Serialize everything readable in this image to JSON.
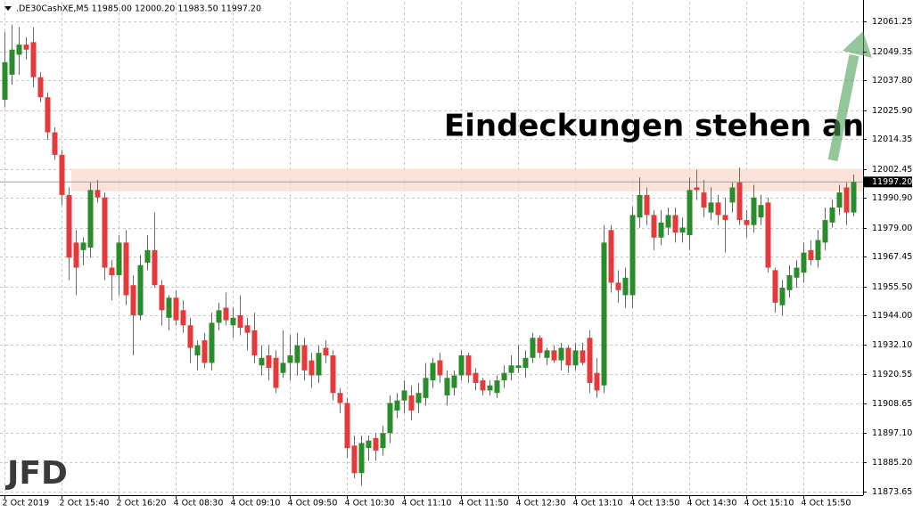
{
  "header": ".DE30CashXE,M5  11985.00 12000.20 11983.50 11997.20",
  "logo": "JFD",
  "chart_data": {
    "type": "candlestick",
    "annotation": "Eindeckungen stehen an",
    "annotation_color": "#3c9a3c",
    "up_color": "#2a8c2a",
    "down_color": "#e43a3a",
    "zone_color": "#fbdcd0",
    "resistance_zone": [
      11993.5,
      12002.4
    ],
    "current_price": {
      "value": 11997.2,
      "label": "11997.20"
    },
    "grid": true,
    "ylim": [
      11872.2,
      12069.1
    ],
    "yticks": [
      11873.65,
      {
        "value": 11885.2,
        "label": "11885.20"
      },
      {
        "value": 11897.1,
        "label": "11897.10"
      },
      11908.65,
      11920.55,
      {
        "value": 11932.1,
        "label": "11932.10"
      },
      {
        "value": 11944,
        "label": "11944.00"
      },
      {
        "value": 11955.5,
        "label": "11955.50"
      },
      11967.45,
      {
        "value": 11979,
        "label": "11979.00"
      },
      {
        "value": 11990.9,
        "label": "11990.90"
      },
      12002.45,
      12014.35,
      {
        "value": 12025.9,
        "label": "12025.90"
      },
      {
        "value": 12037.8,
        "label": "12037.80"
      },
      12049.35,
      12061.25
    ],
    "categories": [
      "2 Oct 2019",
      null,
      null,
      null,
      null,
      null,
      null,
      null,
      "2 Oct 15:40",
      null,
      null,
      null,
      null,
      null,
      null,
      null,
      "2 Oct 16:20",
      null,
      null,
      null,
      null,
      null,
      null,
      null,
      "4 Oct 08:30",
      null,
      null,
      null,
      null,
      null,
      null,
      null,
      "4 Oct 09:10",
      null,
      null,
      null,
      null,
      null,
      null,
      null,
      "4 Oct 09:50",
      null,
      null,
      null,
      null,
      null,
      null,
      null,
      "4 Oct 10:30",
      null,
      null,
      null,
      null,
      null,
      null,
      null,
      "4 Oct 11:10",
      null,
      null,
      null,
      null,
      null,
      null,
      null,
      "4 Oct 11:50",
      null,
      null,
      null,
      null,
      null,
      null,
      null,
      "4 Oct 12:30",
      null,
      null,
      null,
      null,
      null,
      null,
      null,
      "4 Oct 13:10",
      null,
      null,
      null,
      null,
      null,
      null,
      null,
      "4 Oct 13:50",
      null,
      null,
      null,
      null,
      null,
      null,
      null,
      "4 Oct 14:30",
      null,
      null,
      null,
      null,
      null,
      null,
      null,
      "4 Oct 15:10",
      null,
      null,
      null,
      null,
      null,
      null,
      null,
      "4 Oct 15:50",
      null,
      null,
      null,
      null,
      null,
      null,
      null
    ],
    "open": [
      12030,
      12040,
      12048,
      12052,
      12053,
      12039,
      12031,
      12017,
      12008,
      11992,
      11973,
      11970,
      11971,
      11994,
      11991,
      11963,
      11960,
      11973,
      11956,
      11944,
      11965,
      11970,
      11956,
      11943,
      11951,
      11946,
      11940,
      11928,
      11934,
      11925,
      11941,
      11947,
      11940,
      11944,
      11940,
      11938,
      11924,
      11928,
      11927,
      11921,
      11925,
      11925,
      11932,
      11926,
      11920,
      11931,
      11928,
      11913,
      11909,
      11892,
      11881,
      11891,
      11895,
      11891,
      11897,
      11906,
      11910,
      11912,
      11909,
      11911,
      11918,
      11926,
      11912,
      11915,
      11920,
      11928,
      11921,
      11918,
      11914,
      11913,
      11918,
      11921,
      11923,
      11923,
      11927,
      11935,
      11927,
      11930,
      11926,
      11931,
      11924,
      11930,
      11935,
      11921,
      11916,
      11978,
      11957,
      11952,
      11952,
      11983,
      11992,
      11984,
      11975,
      11979,
      11984,
      11977,
      11976,
      11995,
      11993,
      11985,
      11989,
      11984,
      11989,
      11997,
      11982,
      11980,
      11983,
      11989,
      11962,
      11948,
      11954,
      11959,
      11961,
      11970,
      11966,
      11973,
      11981,
      11987,
      11995,
      11985
    ],
    "high": [
      12057,
      12060,
      12059,
      12055,
      12059,
      12041,
      12033,
      12019,
      12010,
      11995,
      11978,
      11975,
      11997,
      11998,
      11993,
      11966,
      11976,
      11978,
      11960,
      11968,
      11976,
      11985,
      11958,
      11952,
      11954,
      11950,
      11943,
      11934,
      11937,
      11945,
      11949,
      11953,
      11947,
      11952,
      11943,
      11945,
      11932,
      11932,
      11930,
      11938,
      11936,
      11937,
      11935,
      11929,
      11932,
      11934,
      11930,
      11915,
      11911,
      11896,
      11896,
      11896,
      11897,
      11900,
      11912,
      11913,
      11918,
      11916,
      11917,
      11925,
      11927,
      11929,
      11922,
      11922,
      11930,
      11929,
      11923,
      11919,
      11918,
      11920,
      11924,
      11928,
      11932,
      11930,
      11937,
      11936,
      11931,
      11932,
      11933,
      11932,
      11933,
      11933,
      11938,
      11927,
      11980,
      11980,
      11962,
      11963,
      11987,
      11999,
      11995,
      11986,
      11986,
      11987,
      11987,
      11983,
      11999,
      12002,
      11998,
      11995,
      11992,
      11991,
      11997,
      12003,
      11986,
      11996,
      11992,
      11991,
      11963,
      11958,
      11964,
      11966,
      11973,
      11974,
      11978,
      11987,
      11990,
      11996,
      11997,
      12000.2
    ],
    "low": [
      12027,
      12036,
      12040,
      12046,
      12035,
      12029,
      12014,
      12006,
      11988,
      11958,
      11952,
      11964,
      11967,
      11989,
      11958,
      11950,
      11952,
      11948,
      11928,
      11942,
      11962,
      11955,
      11940,
      11938,
      11940,
      11937,
      11925,
      11922,
      11923,
      11922,
      11938,
      11940,
      11935,
      11936,
      11930,
      11925,
      11920,
      11918,
      11913,
      11919,
      11918,
      11920,
      11918,
      11915,
      11917,
      11925,
      11910,
      11905,
      11887,
      11879,
      11876,
      11886,
      11886,
      11888,
      11893,
      11903,
      11905,
      11902,
      11905,
      11908,
      11915,
      11917,
      11908,
      11912,
      11918,
      11917,
      11914,
      11912,
      11912,
      11911,
      11915,
      11918,
      11921,
      11919,
      11925,
      11927,
      11924,
      11925,
      11922,
      11921,
      11922,
      11924,
      11913,
      11911,
      11913,
      11953,
      11949,
      11947,
      11947,
      11979,
      11980,
      11970,
      11972,
      11976,
      11973,
      11973,
      11970,
      11990,
      11983,
      11982,
      11980,
      11969,
      11985,
      11980,
      11975,
      11977,
      11980,
      11961,
      11945,
      11944,
      11951,
      11955,
      11957,
      11964,
      11963,
      11970,
      11979,
      11984,
      11980,
      11983.5
    ],
    "close": [
      12045,
      12050,
      12052,
      12050,
      12039,
      12031,
      12017,
      12008,
      11992,
      11967,
      11963,
      11973,
      11994,
      11991,
      11963,
      11960,
      11973,
      11952,
      11944,
      11964,
      11970,
      11956,
      11946,
      11951,
      11942,
      11940,
      11931,
      11932,
      11925,
      11941,
      11946,
      11942,
      11943,
      11939,
      11937,
      11928,
      11927,
      11923,
      11915,
      11925,
      11928,
      11932,
      11922,
      11920,
      11929,
      11928,
      11913,
      11909,
      11891,
      11881,
      11893,
      11894,
      11890,
      11897,
      11909,
      11910,
      11914,
      11906,
      11913,
      11919,
      11925,
      11920,
      11919,
      11920,
      11928,
      11920,
      11917,
      11914,
      11916,
      11918,
      11921,
      11924,
      11924,
      11927,
      11935,
      11929,
      11930,
      11926,
      11931,
      11924,
      11930,
      11925,
      11917,
      11914,
      11973,
      11957,
      11954,
      11959,
      11984,
      11992,
      11984,
      11975,
      11981,
      11984,
      11977,
      11979,
      11994,
      11994,
      11987,
      11989,
      11984,
      11982,
      11995,
      11982,
      11980,
      11991,
      11988,
      11963,
      11949,
      11955,
      11960,
      11963,
      11969,
      11966,
      11974,
      11982,
      11987,
      11993,
      11985,
      11997.2
    ]
  }
}
